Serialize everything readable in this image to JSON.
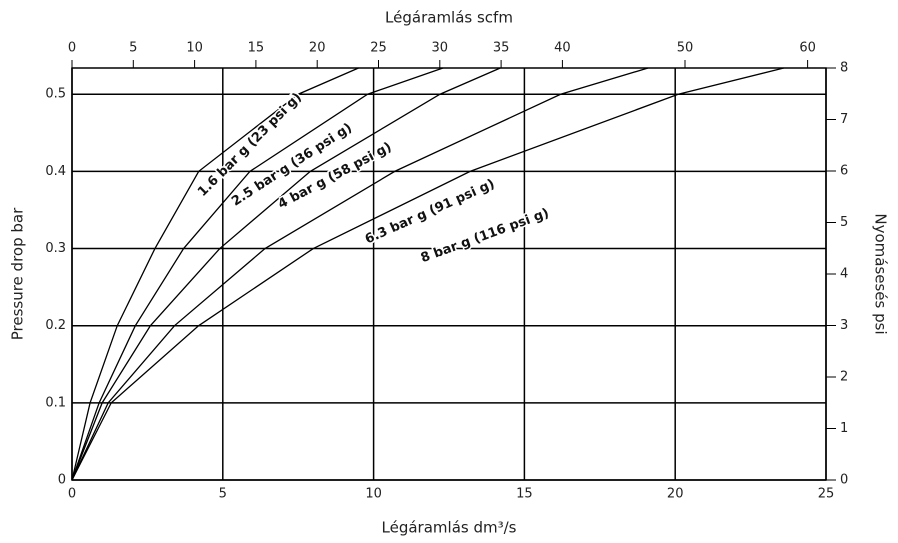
{
  "chart_data": {
    "type": "line",
    "x_label": "Légáramlás dm³/s",
    "x2_label": "Légáramlás scfm",
    "y_label": "Pressure drop bar",
    "y2_label": "Nyomásesés  psi",
    "xlim": [
      0,
      25
    ],
    "xticks": [
      0,
      5,
      10,
      15,
      20,
      25
    ],
    "x2lim": [
      0,
      61.5
    ],
    "x2ticks": [
      0,
      5,
      10,
      15,
      20,
      25,
      30,
      35,
      40,
      50,
      60
    ],
    "ylim": [
      0,
      0.534
    ],
    "yticks": [
      0,
      0.1,
      0.2,
      0.3,
      0.4,
      0.5
    ],
    "y2lim": [
      0,
      8
    ],
    "y2ticks": [
      0,
      1,
      2,
      3,
      4,
      5,
      6,
      7,
      8
    ],
    "grid": true,
    "series": [
      {
        "name": "1.6 bar g (23 psi g)",
        "color": "#000000",
        "x": [
          0,
          0.6,
          1.5,
          2.75,
          4.2,
          7.5,
          9.5
        ],
        "values": [
          0,
          0.1,
          0.2,
          0.3,
          0.4,
          0.5,
          0.534
        ]
      },
      {
        "name": "2.5 bar g (36 psi g)",
        "color": "#000000",
        "x": [
          0,
          0.9,
          2.1,
          3.7,
          5.9,
          9.8,
          12.3
        ],
        "values": [
          0,
          0.1,
          0.2,
          0.3,
          0.4,
          0.5,
          0.534
        ]
      },
      {
        "name": "4 bar g (58 psi g)",
        "color": "#000000",
        "x": [
          0,
          1.0,
          2.6,
          4.9,
          7.9,
          12.2,
          14.2
        ],
        "values": [
          0,
          0.1,
          0.2,
          0.3,
          0.4,
          0.5,
          0.534
        ]
      },
      {
        "name": "6.3 bar g (91 psi g)",
        "color": "#000000",
        "x": [
          0,
          1.2,
          3.4,
          6.4,
          10.7,
          16.2,
          19.1
        ],
        "values": [
          0,
          0.1,
          0.2,
          0.3,
          0.4,
          0.5,
          0.534
        ]
      },
      {
        "name": "8 bar g (116 psi g)",
        "color": "#000000",
        "x": [
          0,
          1.3,
          4.2,
          8.0,
          13.2,
          20.1,
          23.6
        ],
        "values": [
          0,
          0.1,
          0.2,
          0.3,
          0.4,
          0.5,
          0.534
        ]
      }
    ]
  }
}
